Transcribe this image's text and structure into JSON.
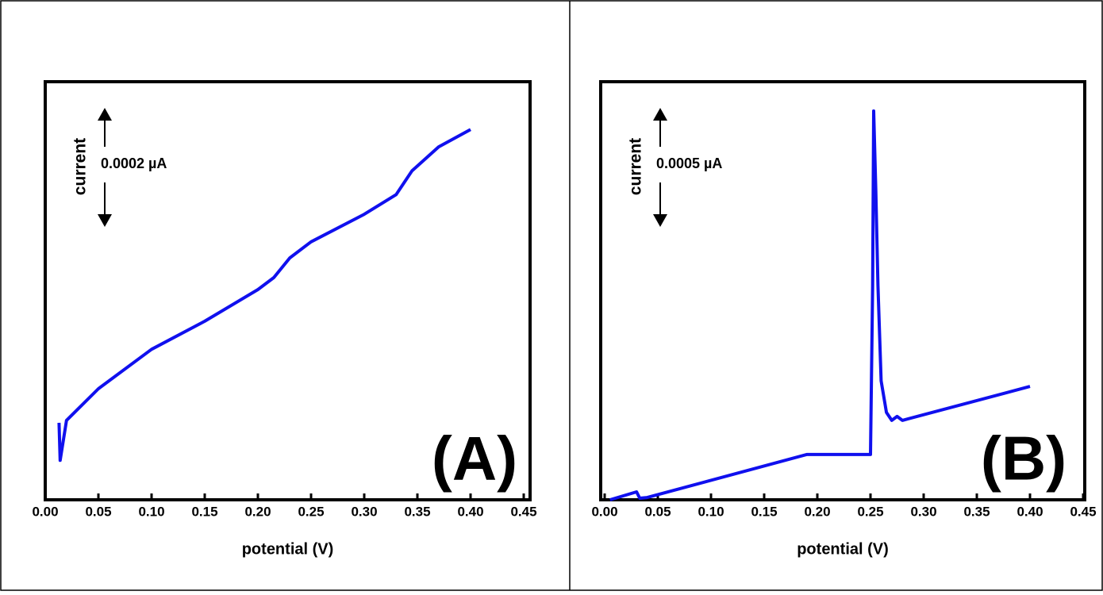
{
  "chart_data": [
    {
      "type": "line",
      "x_label": "potential (V)",
      "scale_label": "current",
      "scale_value": "0.0002 µA",
      "panel_label": "(A)",
      "x": [
        0.013,
        0.014,
        0.02,
        0.05,
        0.1,
        0.15,
        0.2,
        0.215,
        0.23,
        0.25,
        0.3,
        0.33,
        0.345,
        0.37,
        0.4
      ],
      "values": [
        0.000129,
        6.6e-05,
        0.000133,
        0.000186,
        0.000252,
        0.000299,
        0.000352,
        0.000372,
        0.000405,
        0.000432,
        0.000478,
        0.000511,
        0.000551,
        0.000591,
        0.00062
      ],
      "color": "#1010ee",
      "xlim": [
        0,
        0.45
      ],
      "ylim": [
        0,
        0.0007
      ],
      "xticks": [
        {
          "value": 0,
          "label": "0.00"
        },
        0.05,
        {
          "value": 0.1,
          "label": "0.10"
        },
        0.15,
        {
          "value": 0.2,
          "label": "0.20"
        },
        0.25,
        {
          "value": 0.3,
          "label": "0.30"
        },
        0.35,
        {
          "value": 0.4,
          "label": "0.40"
        },
        0.45
      ]
    },
    {
      "type": "line",
      "x_label": "potential (V)",
      "scale_label": "current",
      "scale_value": "0.0005 µA",
      "panel_label": "(B)",
      "x": [
        0.005,
        0.03,
        0.033,
        0.04,
        0.19,
        0.25,
        0.252,
        0.253,
        0.255,
        0.257,
        0.26,
        0.265,
        0.27,
        0.275,
        0.28,
        0.4
      ],
      "values": [
        0,
        3.4e-05,
        7e-06,
        1e-05,
        0.000195,
        0.000195,
        0.000922,
        0.001674,
        0.001332,
        0.000922,
        0.000512,
        0.000376,
        0.000342,
        0.000359,
        0.000342,
        0.000488
      ],
      "color": "#1010ee",
      "xlim": [
        0,
        0.45
      ],
      "ylim": [
        0,
        0.0018
      ],
      "xticks": [
        {
          "value": 0,
          "label": "0.00"
        },
        0.05,
        {
          "value": 0.1,
          "label": "0.10"
        },
        0.15,
        {
          "value": 0.2,
          "label": "0.20"
        },
        0.25,
        {
          "value": 0.3,
          "label": "0.30"
        },
        0.35,
        {
          "value": 0.4,
          "label": "0.40"
        },
        0.45
      ]
    }
  ]
}
